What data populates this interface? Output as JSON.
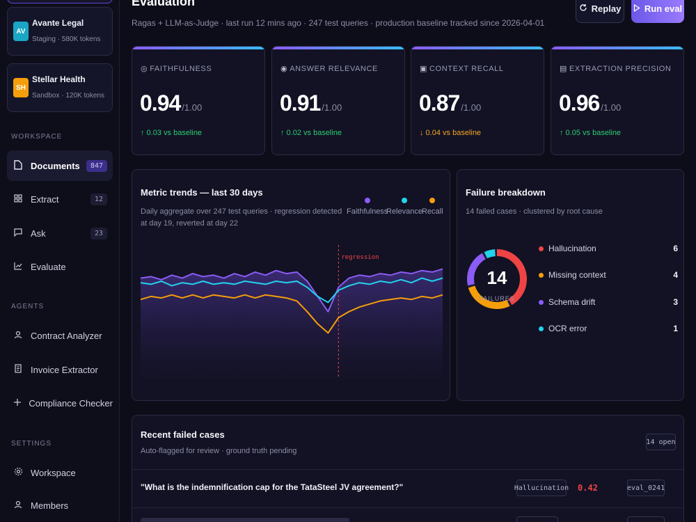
{
  "orgs": [
    {
      "initials": "AV",
      "name": "Avante Legal",
      "sub": "Staging · 580K tokens",
      "color": "#1aa6c4"
    },
    {
      "initials": "SH",
      "name": "Stellar Health",
      "sub": "Sandbox · 120K tokens",
      "color": "#f59e0b"
    }
  ],
  "sidebar": {
    "workspace_label": "WORKSPACE",
    "workspace_items": [
      {
        "icon": "document-icon",
        "label": "Documents",
        "count": "847",
        "active": true
      },
      {
        "icon": "grid-icon",
        "label": "Extract",
        "count": "12"
      },
      {
        "icon": "chat-icon",
        "label": "Ask",
        "count": "23"
      },
      {
        "icon": "chart-icon",
        "label": "Evaluate",
        "count": ""
      }
    ],
    "agents_label": "AGENTS",
    "agent_items": [
      {
        "icon": "person-icon",
        "label": "Contract Analyzer"
      },
      {
        "icon": "invoice-icon",
        "label": "Invoice Extractor"
      },
      {
        "icon": "plus-icon",
        "label": "Compliance Checker"
      }
    ],
    "settings_label": "SETTINGS",
    "settings_items": [
      {
        "icon": "gear-icon",
        "label": "Workspace"
      },
      {
        "icon": "person-icon",
        "label": "Members"
      }
    ]
  },
  "header": {
    "title": "Evaluation",
    "subtitle": "Ragas + LLM-as-Judge · last run 12 mins ago · 247 test queries · production baseline tracked since 2026-04-01",
    "replay_label": "Replay",
    "run_label": "Run eval"
  },
  "metrics": [
    {
      "icon": "check-circle-icon",
      "label": "FAITHFULNESS",
      "value": "0.94",
      "of": "/1.00",
      "delta": "↑ 0.03 vs baseline",
      "direction": "up"
    },
    {
      "icon": "target-icon",
      "label": "ANSWER RELEVANCE",
      "value": "0.91",
      "of": "/1.00",
      "delta": "↑ 0.02 vs baseline",
      "direction": "up"
    },
    {
      "icon": "archive-icon",
      "label": "CONTEXT RECALL",
      "value": "0.87",
      "of": "/1.00",
      "delta": "↓ 0.04 vs baseline",
      "direction": "down"
    },
    {
      "icon": "doc-box-icon",
      "label": "EXTRACTION PRECISION",
      "value": "0.96",
      "of": "/1.00",
      "delta": "↑ 0.05 vs baseline",
      "direction": "up"
    }
  ],
  "trends": {
    "title": "Metric trends — last 30 days",
    "subtitle": "Daily aggregate over 247 test queries · regression detected at day 19, reverted at day 22",
    "annotation": "regression",
    "regression_day": 19
  },
  "chart_data": {
    "type": "line",
    "x": [
      1,
      2,
      3,
      4,
      5,
      6,
      7,
      8,
      9,
      10,
      11,
      12,
      13,
      14,
      15,
      16,
      17,
      18,
      19,
      20,
      21,
      22,
      23,
      24,
      25,
      26,
      27,
      28,
      29,
      30
    ],
    "series": [
      {
        "name": "Faithfulness",
        "color": "#8b5cf6",
        "values": [
          0.93,
          0.935,
          0.925,
          0.94,
          0.93,
          0.945,
          0.935,
          0.94,
          0.93,
          0.945,
          0.935,
          0.95,
          0.94,
          0.955,
          0.945,
          0.95,
          0.92,
          0.87,
          0.82,
          0.9,
          0.93,
          0.94,
          0.935,
          0.945,
          0.94,
          0.95,
          0.945,
          0.955,
          0.95,
          0.96
        ]
      },
      {
        "name": "Relevance",
        "color": "#22d3ee",
        "values": [
          0.915,
          0.91,
          0.92,
          0.905,
          0.915,
          0.91,
          0.92,
          0.91,
          0.915,
          0.91,
          0.92,
          0.915,
          0.91,
          0.92,
          0.915,
          0.92,
          0.9,
          0.87,
          0.85,
          0.89,
          0.905,
          0.915,
          0.91,
          0.92,
          0.915,
          0.925,
          0.915,
          0.93,
          0.92,
          0.93
        ]
      },
      {
        "name": "Recall",
        "color": "#f59e0b",
        "values": [
          0.86,
          0.87,
          0.865,
          0.875,
          0.865,
          0.875,
          0.865,
          0.875,
          0.87,
          0.865,
          0.875,
          0.865,
          0.875,
          0.87,
          0.865,
          0.855,
          0.82,
          0.78,
          0.75,
          0.8,
          0.82,
          0.835,
          0.845,
          0.855,
          0.86,
          0.865,
          0.86,
          0.87,
          0.865,
          0.875
        ]
      }
    ],
    "ylim": [
      0.6,
      1.0
    ],
    "title": "Metric trends — last 30 days",
    "legend_position": "top-right",
    "grid": false
  },
  "failures": {
    "title": "Failure breakdown",
    "subtitle": "14 failed cases · clustered by root cause",
    "total": "14",
    "total_label": "FAILURES",
    "items": [
      {
        "label": "Hallucination",
        "count": "6",
        "value": 6,
        "color": "#ef4444"
      },
      {
        "label": "Missing context",
        "count": "4",
        "value": 4,
        "color": "#f59e0b"
      },
      {
        "label": "Schema drift",
        "count": "3",
        "value": 3,
        "color": "#8b5cf6"
      },
      {
        "label": "OCR error",
        "count": "1",
        "value": 1,
        "color": "#22d3ee"
      }
    ]
  },
  "recent": {
    "title": "Recent failed cases",
    "subtitle": "Auto-flagged for review · ground truth pending",
    "badge": "14 open",
    "cases": [
      {
        "question": "\"What is the indemnification cap for the TataSteel JV agreement?\"",
        "tag": "Hallucination",
        "score": "0.42",
        "id": "eval_0241"
      }
    ]
  }
}
